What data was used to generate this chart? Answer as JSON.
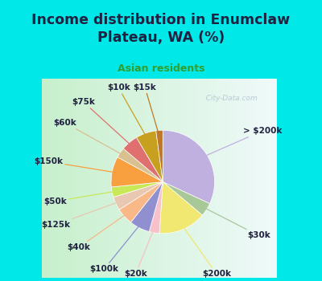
{
  "title": "Income distribution in Enumclaw\nPlateau, WA (%)",
  "subtitle": "Asian residents",
  "slices": [
    {
      "label": "> $200k",
      "value": 30,
      "color": "#c0b0e0"
    },
    {
      "label": "$30k",
      "value": 4,
      "color": "#a8c898"
    },
    {
      "label": "$200k",
      "value": 14,
      "color": "#f0e870"
    },
    {
      "label": "$20k",
      "value": 3,
      "color": "#f8c0c8"
    },
    {
      "label": "$100k",
      "value": 6,
      "color": "#9090d0"
    },
    {
      "label": "$40k",
      "value": 5,
      "color": "#f8b888"
    },
    {
      "label": "$125k",
      "value": 4,
      "color": "#e8c8b0"
    },
    {
      "label": "$50k",
      "value": 3,
      "color": "#c8e858"
    },
    {
      "label": "$150k",
      "value": 9,
      "color": "#f8a040"
    },
    {
      "label": "$60k",
      "value": 3,
      "color": "#d8c090"
    },
    {
      "label": "$75k",
      "value": 5,
      "color": "#e07070"
    },
    {
      "label": "$10k",
      "value": 6,
      "color": "#c8a020"
    },
    {
      "label": "$15k",
      "value": 2,
      "color": "#c07828"
    }
  ],
  "bg_color": "#00e8e8",
  "plot_bg_left": "#c8e8c8",
  "plot_bg_right": "#e8f8f8",
  "watermark": "City-Data.com",
  "title_color": "#202040",
  "subtitle_color": "#30a030",
  "label_fontsize": 7.5,
  "title_fontsize": 12.5
}
